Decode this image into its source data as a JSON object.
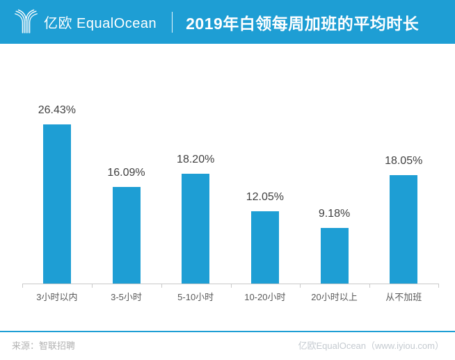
{
  "header": {
    "brand": "亿欧 EqualOcean",
    "title": "2019年白领每周加班的平均时长",
    "background_color": "#1E9ED4",
    "logo_icon": "equalocean-fountain-y-icon"
  },
  "chart_data": {
    "type": "bar",
    "title": "2019年白领每周加班的平均时长",
    "categories": [
      "3小时以内",
      "3-5小时",
      "5-10小时",
      "10-20小时",
      "20小时以上",
      "从不加班"
    ],
    "values": [
      26.43,
      16.09,
      18.2,
      12.05,
      9.18,
      18.05
    ],
    "value_labels": [
      "26.43%",
      "16.09%",
      "18.20%",
      "12.05%",
      "9.18%",
      "18.05%"
    ],
    "bar_color": "#1E9ED4",
    "value_label_color": "#3F3F3F",
    "axis_label_color": "#595959",
    "axis_line_color": "#C9C9C9",
    "xlabel": "",
    "ylabel": "",
    "ylim": [
      0,
      30
    ],
    "grid": false,
    "legend": false,
    "value_label_position": "above"
  },
  "footer": {
    "source": "来源：智联招聘",
    "site": "亿欧EqualOcean（www.iyiou.com）"
  }
}
